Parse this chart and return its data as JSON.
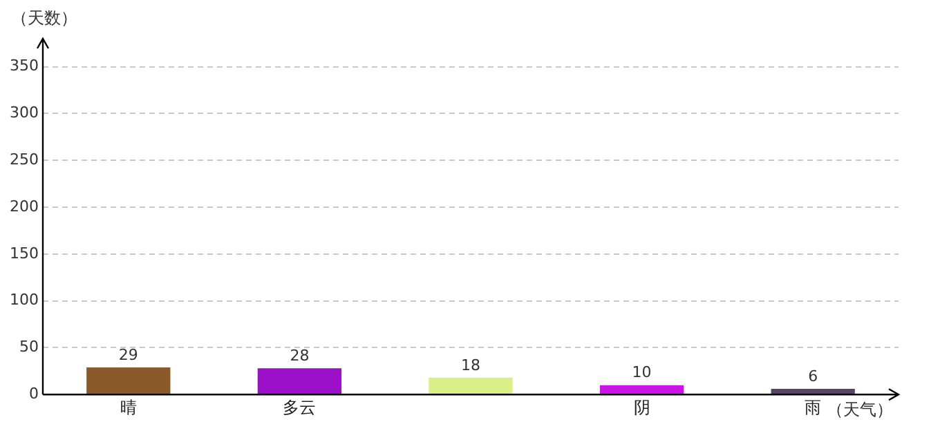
{
  "chart_data": {
    "type": "bar",
    "xlabel": "（天气）",
    "ylabel": "（天数）",
    "categories": [
      "晴",
      "多云",
      null,
      "阴",
      "雨"
    ],
    "values": [
      29,
      28,
      18,
      10,
      6
    ],
    "colors": [
      "#8a5a2a",
      "#9b10c8",
      "#d9ef88",
      "#cc14e8",
      "#5a4466"
    ],
    "ylim": [
      0,
      380
    ],
    "yticks": [
      0,
      50,
      100,
      150,
      200,
      250,
      300,
      350
    ],
    "grid": "y",
    "data_labels": true
  }
}
